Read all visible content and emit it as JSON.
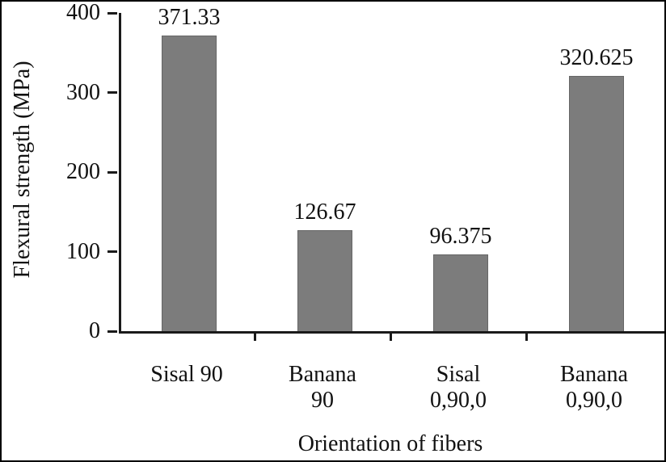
{
  "chart_data": {
    "type": "bar",
    "categories": [
      "Sisal 90",
      "Banana\n90",
      "Sisal\n0,90,0",
      "Banana\n0,90,0"
    ],
    "values": [
      371.33,
      126.67,
      96.375,
      320.625
    ],
    "value_labels": [
      "371.33",
      "126.67",
      "96.375",
      "320.625"
    ],
    "xlabel": "Orientation of fibers",
    "ylabel": "Flexural strength (MPa)",
    "ylim": [
      0,
      400
    ],
    "yticks": [
      0,
      100,
      200,
      300,
      400
    ],
    "bar_color": "#7c7c7c",
    "axis_color": "#1a1a1a",
    "grid": false,
    "legend": false
  }
}
